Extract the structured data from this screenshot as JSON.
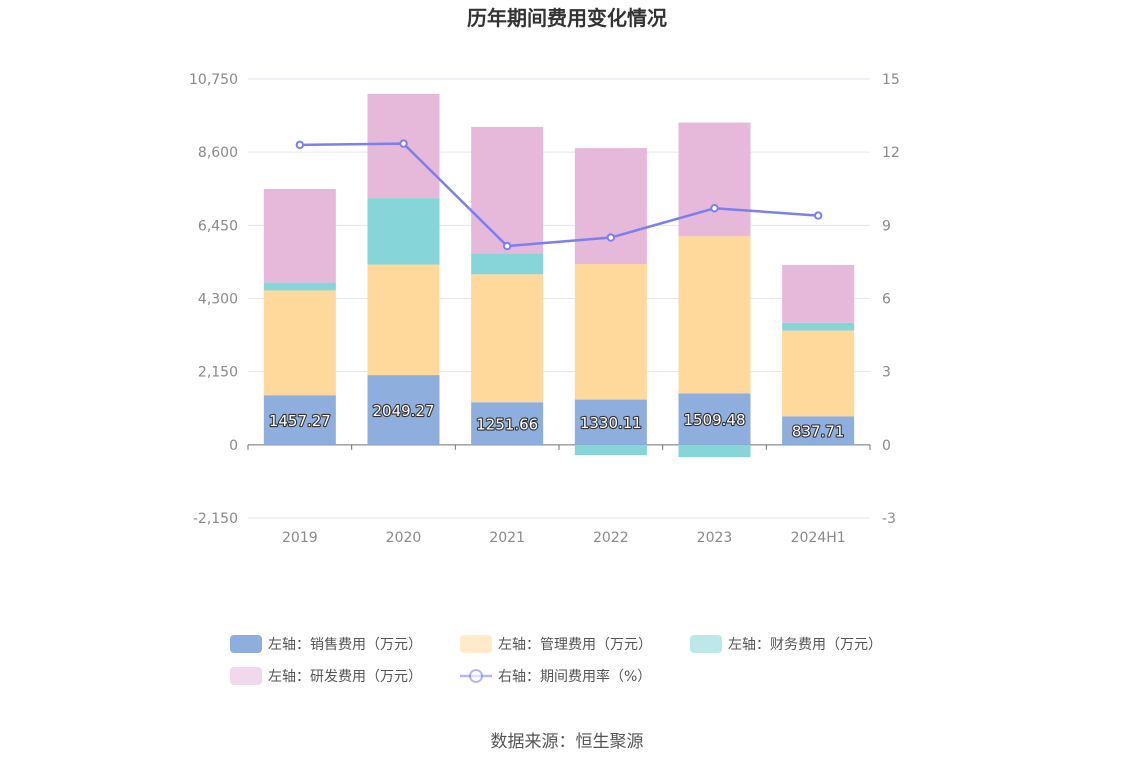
{
  "chart_data": {
    "type": "bar",
    "title": "历年期间费用变化情况",
    "categories": [
      "2019",
      "2020",
      "2021",
      "2022",
      "2023",
      "2024H1"
    ],
    "stacked": true,
    "series": [
      {
        "name": "左轴：销售费用（万元）",
        "axis": "left",
        "type": "bar",
        "color": "#8eaedd",
        "values": [
          1457.27,
          2049.27,
          1251.66,
          1330.11,
          1509.48,
          837.71
        ]
      },
      {
        "name": "左轴：管理费用（万元）",
        "axis": "left",
        "type": "bar",
        "color": "#ffd89c",
        "values": [
          3080,
          3250,
          3760,
          3980,
          4620,
          2520
        ]
      },
      {
        "name": "左轴：财务费用（万元）",
        "axis": "left",
        "type": "bar",
        "color": "#85d5d9",
        "values": [
          230,
          1950,
          620,
          -300,
          -360,
          230
        ]
      },
      {
        "name": "左轴：研发费用（万元）",
        "axis": "left",
        "type": "bar",
        "color": "#e6b8da",
        "values": [
          2750,
          3060,
          3710,
          3410,
          3340,
          1700
        ]
      },
      {
        "name": "右轴：期间费用率（%）",
        "axis": "right",
        "type": "line",
        "color": "#7b7ff0",
        "values": [
          12.3,
          12.35,
          8.15,
          8.5,
          9.7,
          9.4
        ]
      }
    ],
    "left_axis": {
      "ylim": [
        -2150,
        10750
      ],
      "ticks": [
        "-2,150",
        "0",
        "2,150",
        "4,300",
        "6,450",
        "8,600",
        "10,750"
      ]
    },
    "right_axis": {
      "ylim": [
        -3,
        15
      ],
      "ticks": [
        "-3",
        "0",
        "3",
        "6",
        "9",
        "12",
        "15"
      ]
    },
    "grid": true,
    "legend_position": "bottom",
    "source": "数据来源：恒生聚源"
  }
}
